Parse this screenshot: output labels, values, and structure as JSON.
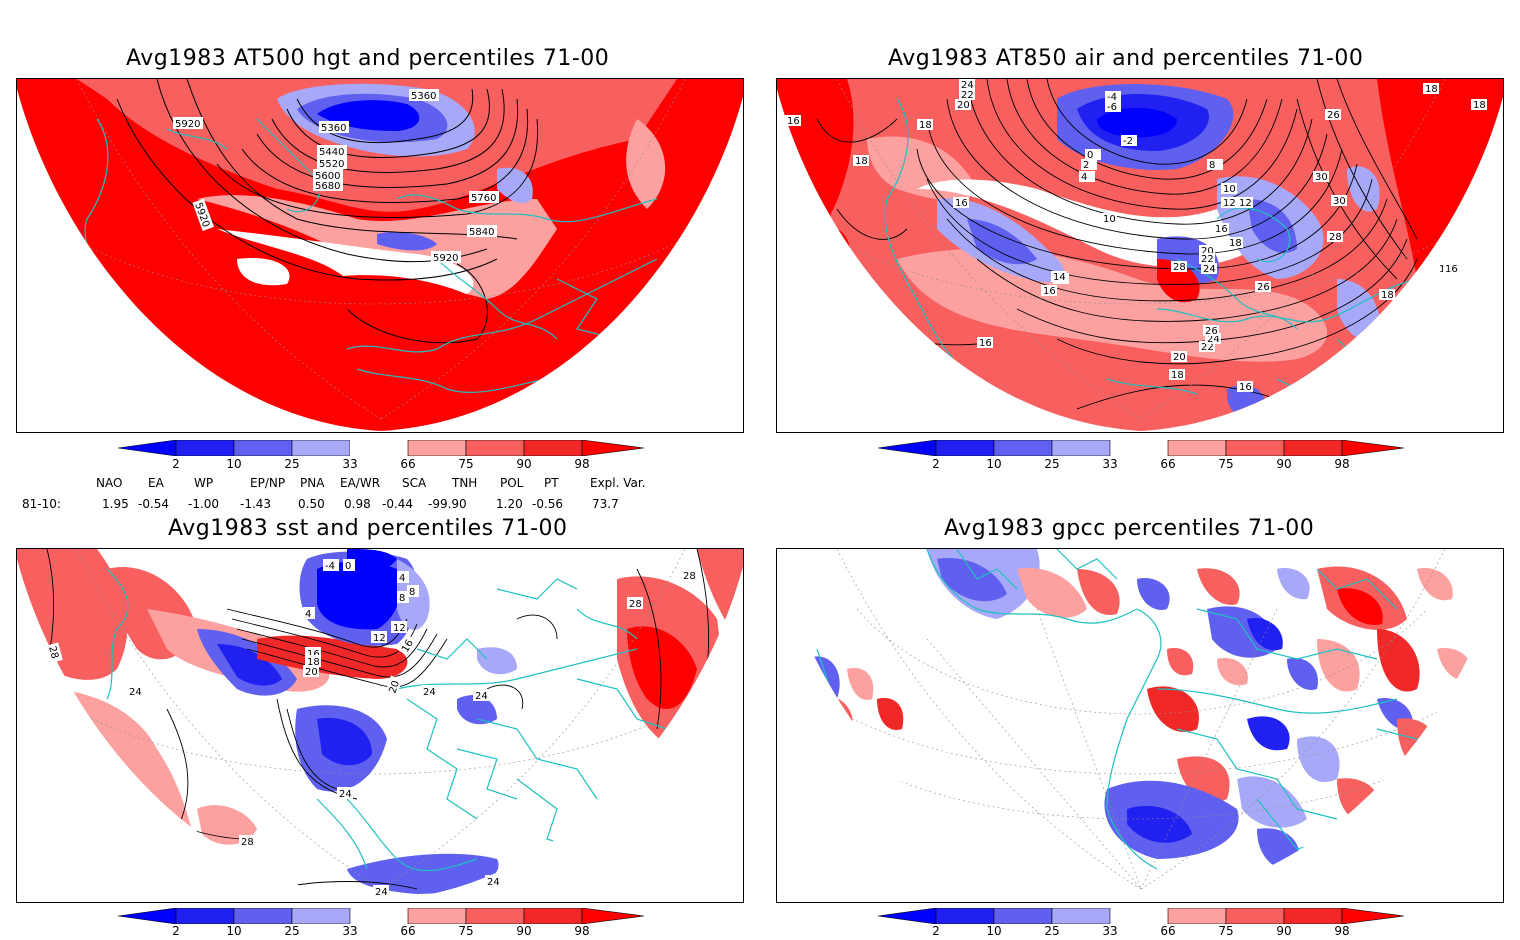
{
  "panels": [
    {
      "id": "p1",
      "title": "Avg1983 AT500 hgt and percentiles 71-00",
      "contour_labels": [
        "5360",
        "5360",
        "5440",
        "5520",
        "5600",
        "5680",
        "5760",
        "5840",
        "5920",
        "5920",
        "5920"
      ]
    },
    {
      "id": "p2",
      "title": "Avg1983 AT850 air and percentiles 71-00",
      "contour_labels": [
        "24",
        "22",
        "20",
        "18",
        "16",
        "18",
        "-4",
        "-6",
        "-2",
        "0",
        "2",
        "4",
        "8",
        "10",
        "12",
        "14",
        "16",
        "18",
        "20",
        "22",
        "24",
        "26",
        "28",
        "30",
        "30",
        "28",
        "26",
        "18",
        "16",
        "16",
        "18",
        "16",
        "20",
        "22",
        "24",
        "26",
        "18",
        "16",
        "18",
        "16",
        "14",
        "10",
        "12",
        "16"
      ]
    },
    {
      "id": "p3",
      "title": "Avg1983 sst and percentiles 71-00",
      "contour_labels": [
        "28",
        "28",
        "-4",
        "0",
        "4",
        "8",
        "12",
        "16",
        "18",
        "20",
        "24",
        "24",
        "28",
        "24",
        "28",
        "24",
        "4",
        "8",
        "12",
        "20",
        "24",
        "16",
        "24"
      ]
    },
    {
      "id": "p4",
      "title": "Avg1983 gpcc percentiles 71-00",
      "contour_labels": []
    }
  ],
  "legend": {
    "labels": [
      "2",
      "10",
      "25",
      "33",
      "66",
      "75",
      "90",
      "98"
    ],
    "colors": {
      "lt2": "#0000ff",
      "b2_10": "#2020f0",
      "b10_25": "#6060f0",
      "b25_33": "#a8a8f8",
      "b33_66": "#ffffff",
      "b66_75": "#fca0a0",
      "b75_90": "#f86060",
      "b90_98": "#f02828",
      "gt98": "#ff0000"
    }
  },
  "indices": {
    "headers": [
      "NAO",
      "EA",
      "WP",
      "EP/NP",
      "PNA",
      "EA/WR",
      "SCA",
      "TNH",
      "POL",
      "PT",
      "Expl. Var."
    ],
    "row_label": "81-10:",
    "values": [
      "1.95",
      "-0.54",
      "-1.00",
      "-1.43",
      "0.50",
      "0.98",
      "-0.44",
      "-99.90",
      "1.20",
      "-0.56",
      "73.7"
    ]
  },
  "colors": {
    "coastline": "#20c0c0",
    "contour": "#000000",
    "grid": "#909090"
  }
}
